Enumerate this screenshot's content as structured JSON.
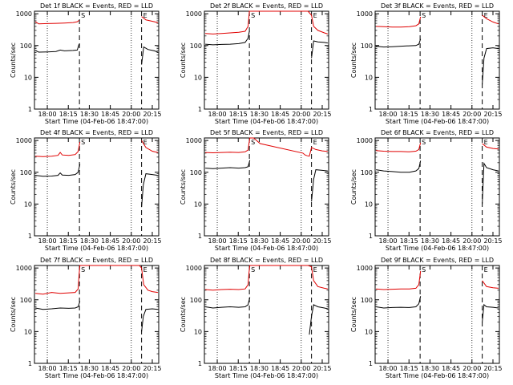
{
  "chart_data": [
    {
      "type": "line",
      "title": "Det 1f BLACK = Events, RED = LLD",
      "xlabel": "Start Time (04-Feb-06 18:47:00)",
      "ylabel": "Counts/sec",
      "y_scale": "log",
      "ylim": [
        1,
        1200
      ],
      "xlim": [
        17.7,
        20.6
      ],
      "x_ticks": [
        "18:00",
        "18:15",
        "18:30",
        "18:45",
        "20:00",
        "20:15"
      ],
      "y_ticks": [
        "1",
        "10",
        "100",
        "1000"
      ],
      "markers": {
        "S": 18.75,
        "E": 20.2
      },
      "series": [
        {
          "name": "LLD",
          "color": "#e00000",
          "x": [
            17.72,
            17.8,
            18.0,
            18.2,
            18.4,
            18.6,
            18.7,
            18.74,
            18.79,
            20.05,
            20.2,
            20.3,
            20.5,
            20.58
          ],
          "y": [
            560,
            480,
            490,
            500,
            510,
            530,
            560,
            620,
            null,
            null,
            820,
            640,
            560,
            520
          ]
        },
        {
          "name": "Events",
          "color": "#000000",
          "x": [
            17.72,
            17.8,
            18.0,
            18.2,
            18.3,
            18.4,
            18.6,
            18.7,
            18.74,
            18.79,
            20.05,
            20.2,
            20.25,
            20.35,
            20.5,
            20.58
          ],
          "y": [
            70,
            62,
            63,
            65,
            72,
            68,
            70,
            72,
            110,
            null,
            null,
            25,
            90,
            75,
            68,
            62
          ]
        }
      ]
    },
    {
      "type": "line",
      "title": "Det 2f BLACK = Events, RED = LLD",
      "xlabel": "Start Time (04-Feb-06 18:47:00)",
      "ylabel": "Counts/sec",
      "y_scale": "log",
      "ylim": [
        1,
        1200
      ],
      "xlim": [
        17.7,
        20.6
      ],
      "x_ticks": [
        "18:00",
        "18:15",
        "18:30",
        "18:45",
        "20:00",
        "20:15"
      ],
      "y_ticks": [
        "1",
        "10",
        "100",
        "1000"
      ],
      "markers": {
        "S": 18.75,
        "E": 20.2
      },
      "series": [
        {
          "name": "LLD",
          "color": "#e00000",
          "x": [
            17.72,
            17.9,
            18.1,
            18.3,
            18.5,
            18.65,
            18.72,
            18.75,
            18.78,
            20.05,
            20.12,
            20.2,
            20.25,
            20.35,
            20.5,
            20.58
          ],
          "y": [
            240,
            230,
            240,
            250,
            260,
            280,
            400,
            1200,
            1200,
            1200,
            1200,
            900,
            400,
            300,
            250,
            230
          ]
        },
        {
          "name": "Events",
          "color": "#000000",
          "x": [
            17.72,
            17.9,
            18.1,
            18.3,
            18.5,
            18.65,
            18.72,
            18.75,
            18.78,
            20.05,
            20.2,
            20.25,
            20.35,
            20.5,
            20.58
          ],
          "y": [
            110,
            105,
            108,
            110,
            115,
            125,
            170,
            280,
            null,
            null,
            40,
            140,
            130,
            125,
            120
          ]
        }
      ]
    },
    {
      "type": "line",
      "title": "Det 3f BLACK = Events, RED = LLD",
      "xlabel": "Start Time (04-Feb-06 18:47:00)",
      "ylabel": "Counts/sec",
      "y_scale": "log",
      "ylim": [
        1,
        1200
      ],
      "xlim": [
        17.7,
        20.6
      ],
      "x_ticks": [
        "18:00",
        "18:15",
        "18:30",
        "18:45",
        "20:00",
        "20:15"
      ],
      "y_ticks": [
        "1",
        "10",
        "100",
        "1000"
      ],
      "markers": {
        "S": 18.75,
        "E": 20.2
      },
      "series": [
        {
          "name": "LLD",
          "color": "#e00000",
          "x": [
            17.72,
            17.9,
            18.1,
            18.3,
            18.5,
            18.65,
            18.72,
            18.76,
            20.18,
            20.2,
            20.3,
            20.45,
            20.58
          ],
          "y": [
            400,
            390,
            380,
            380,
            390,
            420,
            480,
            800,
            null,
            900,
            700,
            550,
            480
          ]
        },
        {
          "name": "Events",
          "color": "#000000",
          "x": [
            17.72,
            17.9,
            18.1,
            18.3,
            18.5,
            18.65,
            18.72,
            18.76,
            20.18,
            20.2,
            20.24,
            20.3,
            20.45,
            20.58
          ],
          "y": [
            95,
            90,
            92,
            95,
            98,
            100,
            110,
            160,
            null,
            6,
            40,
            80,
            85,
            80
          ]
        }
      ]
    },
    {
      "type": "line",
      "title": "Det 4f BLACK = Events, RED = LLD",
      "xlabel": "Start Time (04-Feb-06 18:47:00)",
      "ylabel": "Counts/sec",
      "y_scale": "log",
      "ylim": [
        1,
        1200
      ],
      "xlim": [
        17.7,
        20.6
      ],
      "x_ticks": [
        "18:00",
        "18:15",
        "18:30",
        "18:45",
        "20:00",
        "20:15"
      ],
      "y_ticks": [
        "1",
        "10",
        "100",
        "1000"
      ],
      "markers": {
        "S": 18.75,
        "E": 20.2
      },
      "series": [
        {
          "name": "LLD",
          "color": "#e00000",
          "x": [
            17.72,
            17.9,
            18.1,
            18.25,
            18.3,
            18.35,
            18.5,
            18.65,
            18.72,
            18.76,
            20.18,
            20.2,
            20.3,
            20.45,
            20.58
          ],
          "y": [
            320,
            310,
            320,
            340,
            420,
            350,
            340,
            360,
            450,
            900,
            null,
            1000,
            600,
            460,
            420
          ]
        },
        {
          "name": "Events",
          "color": "#000000",
          "x": [
            17.72,
            17.9,
            18.1,
            18.25,
            18.3,
            18.35,
            18.5,
            18.65,
            18.72,
            18.76,
            20.18,
            20.2,
            20.24,
            20.3,
            20.45,
            20.58
          ],
          "y": [
            80,
            75,
            76,
            80,
            95,
            82,
            80,
            85,
            100,
            180,
            null,
            8,
            40,
            90,
            85,
            80
          ]
        }
      ]
    },
    {
      "type": "line",
      "title": "Det 5f BLACK = Events, RED = LLD",
      "xlabel": "Start Time (04-Feb-06 18:47:00)",
      "ylabel": "Counts/sec",
      "y_scale": "log",
      "ylim": [
        1,
        1200
      ],
      "xlim": [
        17.7,
        20.6
      ],
      "x_ticks": [
        "18:00",
        "18:15",
        "18:30",
        "18:45",
        "20:00",
        "20:15"
      ],
      "y_ticks": [
        "1",
        "10",
        "100",
        "1000"
      ],
      "markers": {
        "S": 18.75,
        "E": 20.2
      },
      "series": [
        {
          "name": "LLD",
          "color": "#e00000",
          "x": [
            17.72,
            17.9,
            18.1,
            18.3,
            18.5,
            18.65,
            18.72,
            18.74,
            18.76,
            18.85,
            19.0,
            20.0,
            20.05,
            20.1,
            20.15,
            20.2,
            20.3,
            20.45,
            20.58
          ],
          "y": [
            420,
            410,
            420,
            430,
            420,
            440,
            500,
            800,
            1200,
            1200,
            800,
            400,
            350,
            330,
            320,
            600,
            520,
            470,
            450
          ]
        },
        {
          "name": "Events",
          "color": "#000000",
          "x": [
            17.72,
            17.9,
            18.1,
            18.3,
            18.5,
            18.65,
            18.72,
            18.76,
            18.8,
            20.18,
            20.2,
            20.25,
            20.3,
            20.45,
            20.58
          ],
          "y": [
            135,
            130,
            135,
            140,
            135,
            140,
            150,
            240,
            null,
            null,
            12,
            60,
            120,
            115,
            110
          ]
        }
      ]
    },
    {
      "type": "line",
      "title": "Det 6f BLACK = Events, RED = LLD",
      "xlabel": "Start Time (04-Feb-06 18:47:00)",
      "ylabel": "Counts/sec",
      "y_scale": "log",
      "ylim": [
        1,
        1200
      ],
      "xlim": [
        17.7,
        20.6
      ],
      "x_ticks": [
        "18:00",
        "18:15",
        "18:30",
        "18:45",
        "20:00",
        "20:15"
      ],
      "y_ticks": [
        "1",
        "10",
        "100",
        "1000"
      ],
      "markers": {
        "S": 18.75,
        "E": 20.2
      },
      "series": [
        {
          "name": "LLD",
          "color": "#e00000",
          "x": [
            17.72,
            17.9,
            18.1,
            18.3,
            18.5,
            18.65,
            18.72,
            18.76,
            20.18,
            20.2,
            20.3,
            20.45,
            20.58
          ],
          "y": [
            480,
            460,
            450,
            450,
            440,
            460,
            520,
            850,
            null,
            800,
            620,
            560,
            540
          ]
        },
        {
          "name": "Events",
          "color": "#000000",
          "x": [
            17.72,
            17.9,
            18.1,
            18.3,
            18.5,
            18.65,
            18.72,
            18.76,
            20.18,
            20.2,
            20.24,
            20.3,
            20.45,
            20.58
          ],
          "y": [
            120,
            110,
            105,
            100,
            100,
            110,
            130,
            230,
            null,
            10,
            190,
            140,
            120,
            110
          ]
        }
      ]
    },
    {
      "type": "line",
      "title": "Det 7f BLACK = Events, RED = LLD",
      "xlabel": "Start Time (04-Feb-06 18:47:00)",
      "ylabel": "Counts/sec",
      "y_scale": "log",
      "ylim": [
        1,
        1200
      ],
      "xlim": [
        17.7,
        20.6
      ],
      "x_ticks": [
        "18:00",
        "18:15",
        "18:30",
        "18:45",
        "20:00",
        "20:15"
      ],
      "y_ticks": [
        "1",
        "10",
        "100",
        "1000"
      ],
      "markers": {
        "S": 18.75,
        "E": 20.2
      },
      "series": [
        {
          "name": "LLD",
          "color": "#e00000",
          "x": [
            17.72,
            17.9,
            18.1,
            18.3,
            18.5,
            18.65,
            18.72,
            18.74,
            18.76,
            20.15,
            20.2,
            20.25,
            20.35,
            20.45,
            20.58
          ],
          "y": [
            160,
            150,
            170,
            160,
            165,
            170,
            220,
            600,
            1200,
            1200,
            1000,
            300,
            200,
            180,
            170
          ]
        },
        {
          "name": "Events",
          "color": "#000000",
          "x": [
            17.72,
            17.9,
            18.1,
            18.3,
            18.5,
            18.65,
            18.72,
            18.76,
            20.18,
            20.2,
            20.24,
            20.3,
            20.45,
            20.58
          ],
          "y": [
            55,
            50,
            52,
            55,
            54,
            55,
            60,
            90,
            null,
            10,
            30,
            50,
            52,
            50
          ]
        }
      ]
    },
    {
      "type": "line",
      "title": "Det 8f BLACK = Events, RED = LLD",
      "xlabel": "Start Time (04-Feb-06 18:47:00)",
      "ylabel": "Counts/sec",
      "y_scale": "log",
      "ylim": [
        1,
        1200
      ],
      "xlim": [
        17.7,
        20.6
      ],
      "x_ticks": [
        "18:00",
        "18:15",
        "18:30",
        "18:45",
        "20:00",
        "20:15"
      ],
      "y_ticks": [
        "1",
        "10",
        "100",
        "1000"
      ],
      "markers": {
        "S": 18.75,
        "E": 20.2
      },
      "series": [
        {
          "name": "LLD",
          "color": "#e00000",
          "x": [
            17.72,
            17.9,
            18.1,
            18.3,
            18.5,
            18.65,
            18.72,
            18.74,
            18.76,
            20.05,
            20.12,
            20.2,
            20.25,
            20.35,
            20.5,
            20.58
          ],
          "y": [
            210,
            200,
            210,
            215,
            210,
            220,
            300,
            700,
            1200,
            1200,
            1200,
            1100,
            400,
            260,
            230,
            220
          ]
        },
        {
          "name": "Events",
          "color": "#000000",
          "x": [
            17.72,
            17.9,
            18.1,
            18.3,
            18.5,
            18.65,
            18.72,
            18.76,
            18.8,
            20.05,
            20.15,
            20.2,
            20.25,
            20.35,
            20.5,
            20.58
          ],
          "y": [
            60,
            55,
            58,
            60,
            58,
            60,
            70,
            120,
            null,
            null,
            8,
            30,
            70,
            60,
            55,
            52
          ]
        }
      ]
    },
    {
      "type": "line",
      "title": "Det 9f BLACK = Events, RED = LLD",
      "xlabel": "Start Time (04-Feb-06 18:47:00)",
      "ylabel": "Counts/sec",
      "y_scale": "log",
      "ylim": [
        1,
        1200
      ],
      "xlim": [
        17.7,
        20.6
      ],
      "x_ticks": [
        "18:00",
        "18:15",
        "18:30",
        "18:45",
        "20:00",
        "20:15"
      ],
      "y_ticks": [
        "1",
        "10",
        "100",
        "1000"
      ],
      "markers": {
        "S": 18.75,
        "E": 20.2
      },
      "series": [
        {
          "name": "LLD",
          "color": "#e00000",
          "x": [
            17.72,
            17.9,
            18.1,
            18.3,
            18.5,
            18.65,
            18.72,
            18.76,
            20.18,
            20.2,
            20.3,
            20.45,
            20.58
          ],
          "y": [
            220,
            210,
            215,
            220,
            220,
            230,
            300,
            800,
            null,
            400,
            260,
            240,
            230
          ]
        },
        {
          "name": "Events",
          "color": "#000000",
          "x": [
            17.72,
            17.9,
            18.1,
            18.3,
            18.5,
            18.65,
            18.72,
            18.76,
            20.18,
            20.2,
            20.24,
            20.3,
            20.45,
            20.58
          ],
          "y": [
            60,
            55,
            57,
            58,
            57,
            60,
            75,
            130,
            null,
            20,
            70,
            60,
            58,
            55
          ]
        }
      ]
    }
  ]
}
